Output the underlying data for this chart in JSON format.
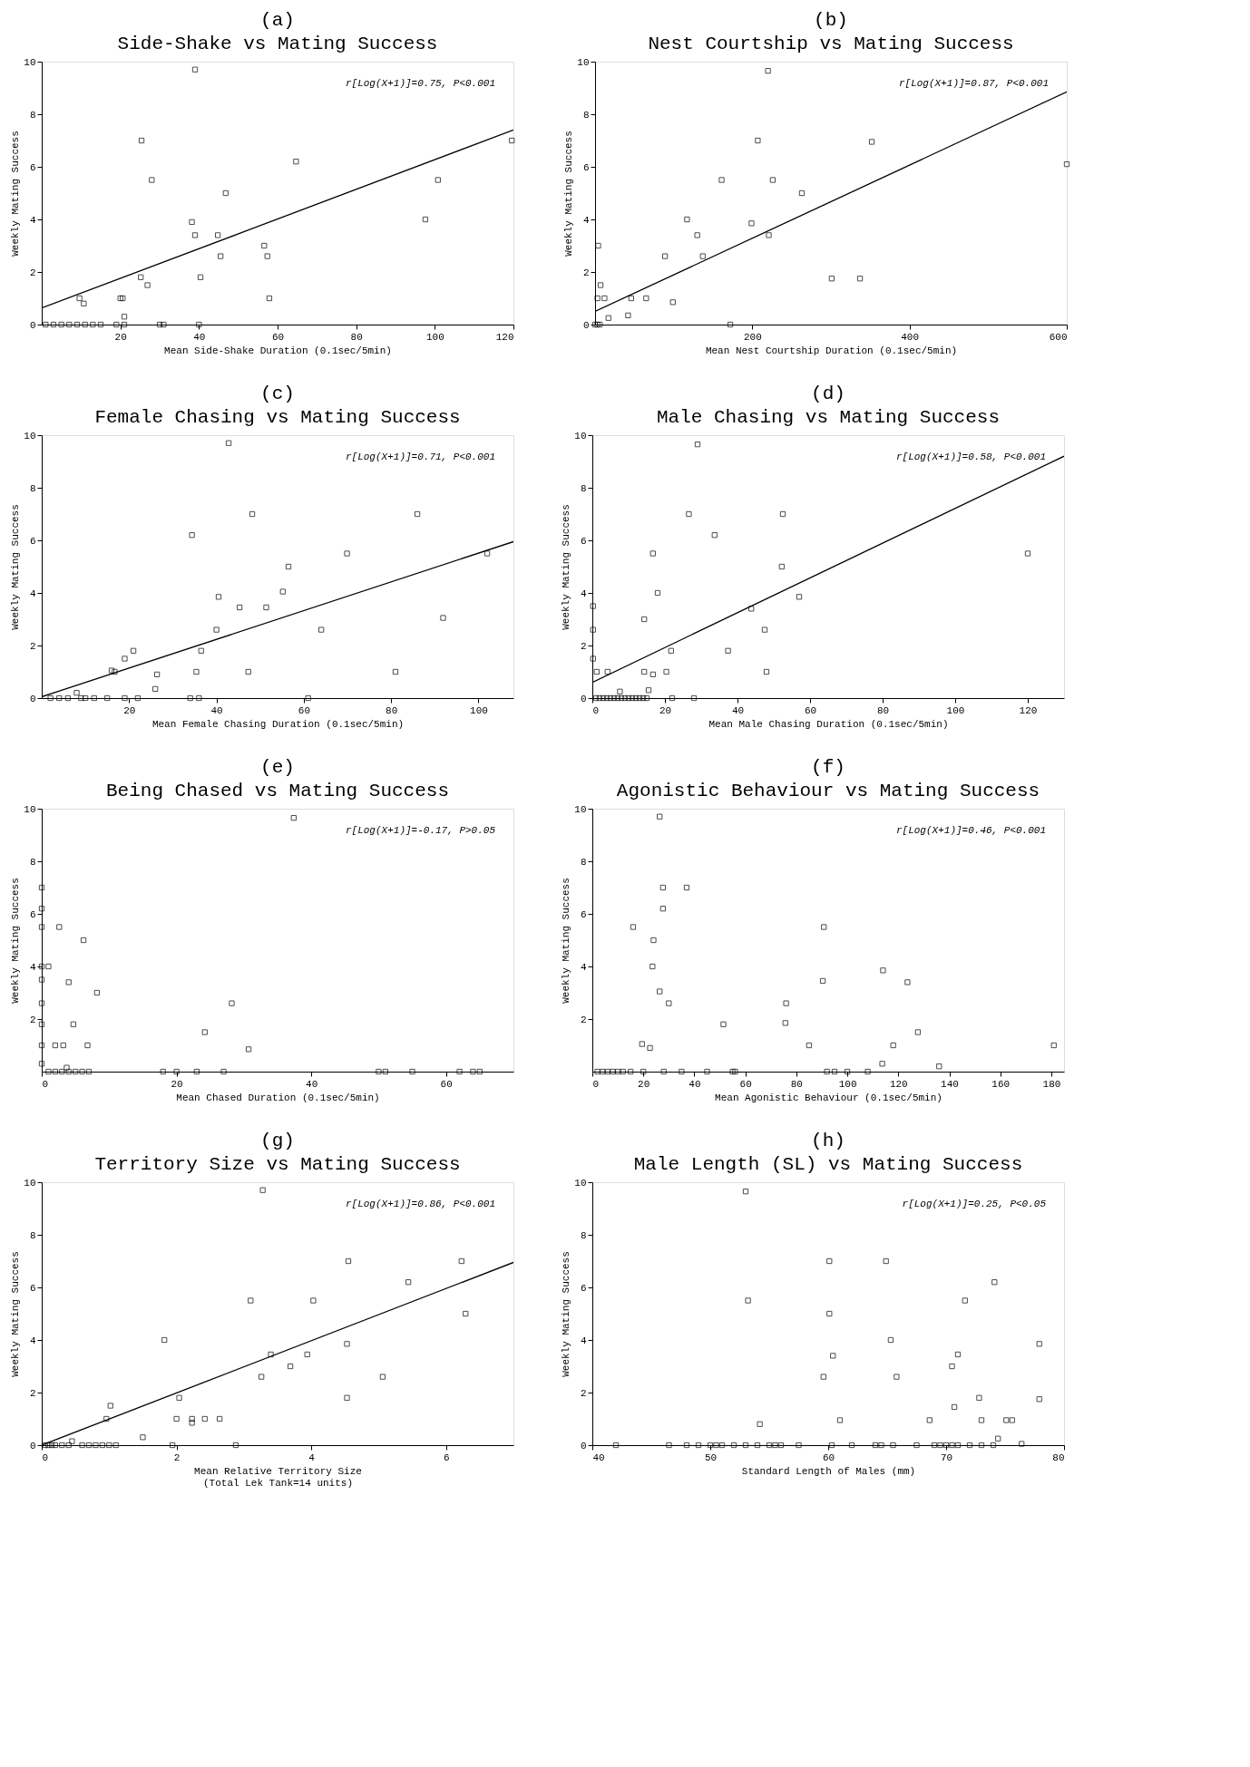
{
  "chart_data": [
    {
      "type": "scatter",
      "subtitle": "(a)",
      "title": "Side-Shake vs Mating Success",
      "xlabel": "Mean Side-Shake Duration (0.1sec/5min)",
      "ylabel": "Weekly Mating Success",
      "annotations": [
        "r[Log(X+1)]=0.75, P<0.001"
      ],
      "xlim": [
        0,
        120
      ],
      "xticks": [
        20,
        40,
        60,
        80,
        100,
        120
      ],
      "ylim": [
        0,
        10
      ],
      "yticks": [
        0,
        2,
        4,
        6,
        8,
        10
      ],
      "grid": false,
      "series": [
        {
          "marker": "square",
          "color": "#000000",
          "x": [
            9.6,
            10.7,
            20,
            20.6,
            21,
            25.4,
            28,
            25.2,
            26.9,
            39,
            38.2,
            39,
            40.4,
            44.8,
            45.5,
            46.8,
            56.6,
            57.4,
            57.9,
            64.7,
            97.6,
            100.8,
            119.6,
            1,
            3,
            5,
            7,
            9,
            11,
            13,
            15,
            19,
            21,
            30,
            31,
            40
          ],
          "values": [
            1,
            0.8,
            1,
            1,
            0.3,
            7,
            5.5,
            1.8,
            1.5,
            9.7,
            3.9,
            3.4,
            1.8,
            3.4,
            2.6,
            5,
            3,
            2.6,
            1,
            6.2,
            4,
            5.5,
            7,
            0,
            0,
            0,
            0,
            0,
            0,
            0,
            0,
            0,
            0,
            0,
            0,
            0
          ]
        },
        {
          "type": "line",
          "color": "#000000",
          "x": [
            0,
            120
          ],
          "values": [
            0.63,
            7.4
          ]
        }
      ]
    },
    {
      "type": "scatter",
      "subtitle": "(b)",
      "title": "Nest Courtship vs Mating Success",
      "xlabel": "Mean Nest Courtship Duration (0.1sec/5min)",
      "ylabel": "Weekly Mating Success",
      "annotations": [
        "r[Log(X+1)]=0.87, P<0.001"
      ],
      "xlim": [
        0,
        600
      ],
      "xticks": [
        200,
        400,
        600
      ],
      "ylim": [
        0,
        10
      ],
      "yticks": [
        0,
        2,
        4,
        6,
        8,
        10
      ],
      "grid": false,
      "series": [
        {
          "marker": "square",
          "color": "#000000",
          "x": [
            4,
            7,
            3,
            12,
            17,
            42,
            46,
            65,
            89,
            99,
            117,
            130,
            137,
            161,
            172,
            199,
            207,
            220,
            221,
            226,
            263,
            301,
            337,
            352,
            600,
            0,
            3,
            6
          ],
          "values": [
            3,
            1.5,
            1,
            1,
            0.25,
            0.35,
            1,
            1,
            2.6,
            0.85,
            4,
            3.4,
            2.6,
            5.5,
            0,
            3.85,
            7,
            9.65,
            3.4,
            5.5,
            5,
            1.75,
            1.75,
            6.95,
            6.1,
            0,
            0,
            0
          ]
        },
        {
          "type": "line",
          "color": "#000000",
          "x": [
            0,
            600
          ],
          "values": [
            0.5,
            8.85
          ]
        }
      ]
    },
    {
      "type": "scatter",
      "subtitle": "(c)",
      "title": "Female Chasing vs Mating Success",
      "xlabel": "Mean Female Chasing Duration (0.1sec/5min)",
      "ylabel": "Weekly Mating Success",
      "annotations": [
        "r[Log(X+1)]=0.71, P<0.001"
      ],
      "xlim": [
        0,
        108
      ],
      "xticks": [
        20,
        40,
        60,
        80,
        100
      ],
      "ylim": [
        0,
        10
      ],
      "yticks": [
        0,
        2,
        4,
        6,
        8,
        10
      ],
      "grid": false,
      "series": [
        {
          "marker": "square",
          "color": "#000000",
          "x": [
            16,
            16.7,
            19,
            21,
            26.4,
            26,
            34.4,
            35.4,
            36.5,
            40,
            40.5,
            42.8,
            45.3,
            48.2,
            47.3,
            51.4,
            55.2,
            56.5,
            64,
            69.9,
            81,
            86,
            91.9,
            102,
            2,
            4,
            6,
            8,
            9,
            10,
            12,
            15,
            19,
            22,
            34,
            36,
            61
          ],
          "values": [
            1.05,
            1,
            1.5,
            1.8,
            0.9,
            0.35,
            6.2,
            1,
            1.8,
            2.6,
            3.85,
            9.7,
            3.45,
            7,
            1,
            3.45,
            4.05,
            5,
            2.6,
            5.5,
            1,
            7,
            3.05,
            5.5,
            0,
            0,
            0,
            0.2,
            0,
            0,
            0,
            0,
            0,
            0,
            0,
            0,
            0
          ]
        },
        {
          "type": "line",
          "color": "#000000",
          "x": [
            0,
            108
          ],
          "values": [
            0.05,
            5.95
          ]
        }
      ]
    },
    {
      "type": "scatter",
      "subtitle": "(d)",
      "title": "Male Chasing vs Mating Success",
      "xlabel": "Mean Male Chasing Duration (0.1sec/5min)",
      "ylabel": "Weekly Mating Success",
      "annotations": [
        "r[Log(X+1)]=0.58, P<0.001"
      ],
      "xlim": [
        0,
        130
      ],
      "xticks": [
        0,
        20,
        40,
        60,
        80,
        100,
        120
      ],
      "ylim": [
        0,
        10
      ],
      "yticks": [
        0,
        2,
        4,
        6,
        8,
        10
      ],
      "grid": false,
      "series": [
        {
          "marker": "square",
          "color": "#000000",
          "x": [
            0.2,
            0.2,
            0.2,
            1.2,
            4.2,
            7.6,
            14.3,
            14.3,
            15.5,
            16.7,
            16.7,
            18,
            20.4,
            21.7,
            26.6,
            33.7,
            37.4,
            43.8,
            47.5,
            52.2,
            52.5,
            48,
            57,
            29,
            120,
            1,
            2,
            3,
            4,
            5,
            6,
            7,
            8,
            9,
            10,
            11,
            12,
            13,
            14,
            15,
            22,
            28
          ],
          "values": [
            3.5,
            2.6,
            1.5,
            1,
            1,
            0.25,
            3,
            1,
            0.3,
            0.9,
            5.5,
            4,
            1,
            1.8,
            7,
            6.2,
            1.8,
            3.4,
            2.6,
            5,
            7,
            1,
            3.85,
            9.65,
            5.5,
            0,
            0,
            0,
            0,
            0,
            0,
            0,
            0,
            0,
            0,
            0,
            0,
            0,
            0,
            0,
            0,
            0
          ]
        },
        {
          "type": "line",
          "color": "#000000",
          "x": [
            0,
            130
          ],
          "values": [
            0.6,
            9.2
          ]
        }
      ]
    },
    {
      "type": "scatter",
      "subtitle": "(e)",
      "title": "Being Chased vs Mating Success",
      "xlabel": "Mean Chased Duration (0.1sec/5min)",
      "ylabel": "Weekly Mating Success",
      "annotations": [
        "r[Log(X+1)]=-0.17, P>0.05"
      ],
      "xlim": [
        0,
        70
      ],
      "xticks": [
        0,
        20,
        40,
        60
      ],
      "ylim": [
        0,
        10
      ],
      "yticks": [
        2,
        4,
        6,
        8,
        10
      ],
      "marker": "square",
      "grid": false,
      "series": [
        {
          "color": "#000000",
          "x": [
            0,
            0,
            0,
            0,
            0,
            0,
            0,
            0,
            0,
            1,
            2.6,
            2,
            3.2,
            4,
            3.7,
            4.7,
            6.2,
            6.8,
            8.2,
            24.2,
            28.2,
            30.7,
            37.4,
            1,
            2,
            3,
            4,
            5,
            6,
            7,
            18,
            20,
            23,
            27,
            50,
            51,
            55,
            62,
            64,
            65
          ],
          "values": [
            7,
            6.2,
            5.5,
            4,
            3.5,
            2.6,
            1.8,
            1,
            0.3,
            4,
            5.5,
            1,
            1,
            3.4,
            0.15,
            1.8,
            5,
            1,
            3,
            1.5,
            2.6,
            0.85,
            9.65,
            0,
            0,
            0,
            0,
            0,
            0,
            0,
            0,
            0,
            0,
            0,
            0,
            0,
            0,
            0,
            0,
            0
          ]
        }
      ]
    },
    {
      "type": "scatter",
      "subtitle": "(f)",
      "title": "Agonistic Behaviour vs Mating Success",
      "xlabel": "Mean Agonistic Behaviour (0.1sec/5min)",
      "ylabel": "Weekly Mating Success",
      "annotations": [
        "r[Log(X+1)]=0.46, P<0.001"
      ],
      "xlim": [
        0,
        185
      ],
      "xticks": [
        0,
        20,
        40,
        60,
        80,
        100,
        120,
        140,
        160,
        180
      ],
      "ylim": [
        0,
        10
      ],
      "yticks": [
        2,
        4,
        6,
        8,
        10
      ],
      "marker": "square",
      "grid": false,
      "series": [
        {
          "color": "#000000",
          "x": [
            26.4,
            27.7,
            37,
            27.7,
            16,
            24,
            23.6,
            26.4,
            30,
            19.5,
            22.6,
            51.4,
            76,
            75.7,
            85,
            90.8,
            90.4,
            114,
            123.6,
            118,
            127.7,
            113.7,
            136,
            181,
            2,
            4,
            6,
            8,
            10,
            12,
            15,
            20,
            28,
            35,
            45,
            55,
            56,
            92,
            95,
            100,
            108
          ],
          "values": [
            9.7,
            7,
            7,
            6.2,
            5.5,
            5,
            4,
            3.05,
            2.6,
            1.05,
            0.9,
            1.8,
            2.6,
            1.85,
            1,
            5.5,
            3.45,
            3.85,
            3.4,
            1,
            1.5,
            0.3,
            0.2,
            1,
            0,
            0,
            0,
            0,
            0,
            0,
            0,
            0,
            0,
            0,
            0,
            0,
            0,
            0,
            0,
            0,
            0
          ]
        }
      ]
    },
    {
      "type": "scatter",
      "subtitle": "(g)",
      "title": "Territory Size vs Mating Success",
      "xlabel": "Mean Relative Territory Size\n(Total Lek Tank=14 units)",
      "ylabel": "Weekly Mating Success",
      "annotations": [
        "r[Log(X+1)]=0.86, P<0.001"
      ],
      "xlim": [
        0,
        7
      ],
      "xticks": [
        0,
        2,
        4,
        6
      ],
      "ylim": [
        0,
        10
      ],
      "yticks": [
        0,
        2,
        4,
        6,
        8,
        10
      ],
      "grid": false,
      "series": [
        {
          "marker": "square",
          "color": "#000000",
          "x": [
            0.96,
            1.02,
            1.5,
            1.82,
            2.04,
            2.0,
            1.94,
            2.23,
            2.23,
            2.42,
            2.64,
            2.88,
            3.1,
            3.28,
            3.26,
            3.4,
            3.69,
            3.94,
            4.03,
            4.55,
            4.53,
            4.53,
            5.06,
            5.44,
            6.23,
            6.29,
            0.05,
            0.1,
            0.15,
            0.2,
            0.3,
            0.4,
            0.45,
            0.6,
            0.7,
            0.8,
            0.9,
            1.0,
            1.1
          ],
          "values": [
            1,
            1.5,
            0.3,
            4,
            1.8,
            1,
            0,
            1,
            0.85,
            1,
            1,
            0,
            5.5,
            9.7,
            2.6,
            3.45,
            3,
            3.45,
            5.5,
            7,
            3.85,
            1.8,
            2.6,
            6.2,
            7,
            5,
            0,
            0,
            0,
            0,
            0,
            0,
            0.15,
            0,
            0,
            0,
            0,
            0,
            0
          ]
        },
        {
          "type": "line",
          "color": "#000000",
          "x": [
            0,
            7
          ],
          "values": [
            0,
            6.95
          ]
        }
      ]
    },
    {
      "type": "scatter",
      "subtitle": "(h)",
      "title": "Male Length (SL) vs  Mating Success",
      "xlabel": "Standard Length of Males (mm)",
      "ylabel": "Weekly Mating Success",
      "annotations": [
        "r[Log(X+1)]=0.25, P<0.05"
      ],
      "xlim": [
        40,
        80
      ],
      "xticks": [
        40,
        50,
        60,
        70,
        80
      ],
      "ylim": [
        0,
        10
      ],
      "yticks": [
        0,
        2,
        4,
        6,
        8,
        10
      ],
      "marker": "square",
      "grid": false,
      "series": [
        {
          "color": "#000000",
          "x": [
            53,
            53.2,
            54.2,
            60.1,
            60.1,
            60.4,
            59.6,
            61,
            64.9,
            65.3,
            65.8,
            68.6,
            70.5,
            70.7,
            71,
            71.6,
            72.8,
            73,
            74.1,
            74.4,
            75.1,
            75.6,
            76.4,
            77.9,
            77.9,
            42,
            46.5,
            48,
            49,
            50,
            50.5,
            51,
            52,
            53,
            54,
            55,
            55.5,
            56,
            57.5,
            60.3,
            62,
            64,
            64.5,
            65.5,
            67.5,
            69,
            69.5,
            70,
            70.5,
            71,
            72,
            73,
            74
          ],
          "values": [
            9.65,
            5.5,
            0.8,
            7,
            5,
            3.4,
            2.6,
            0.95,
            7,
            4,
            2.6,
            0.95,
            3,
            1.45,
            3.45,
            5.5,
            1.8,
            0.95,
            6.2,
            0.25,
            0.95,
            0.95,
            0.05,
            3.85,
            1.75,
            0,
            0,
            0,
            0,
            0,
            0,
            0,
            0,
            0,
            0,
            0,
            0,
            0,
            0,
            0,
            0,
            0,
            0,
            0,
            0,
            0,
            0,
            0,
            0,
            0,
            0,
            0,
            0
          ]
        }
      ]
    }
  ]
}
